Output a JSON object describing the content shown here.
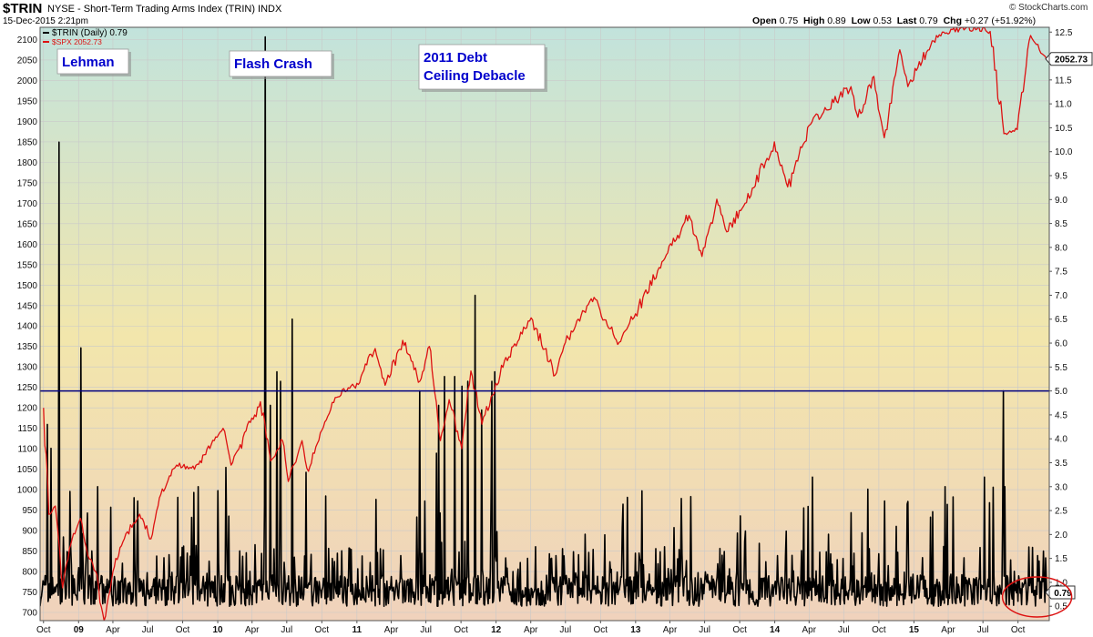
{
  "header": {
    "symbol": "$TRIN",
    "description": "NYSE - Short-Term Trading Arms Index (TRIN)  INDX",
    "date": "15-Dec-2015 2:21pm",
    "brand": "© StockCharts.com",
    "open_label": "Open",
    "open_value": "0.75",
    "high_label": "High",
    "high_value": "0.89",
    "low_label": "Low",
    "low_value": "0.53",
    "last_label": "Last",
    "last_value": "0.79",
    "chg_label": "Chg",
    "chg_value": "+0.27 (+51.92%)"
  },
  "colors": {
    "trin_line": "#000000",
    "spx_line": "#dd1111",
    "reference_line": "#000080",
    "annotation_text": "#0000cc",
    "highlight_circle": "#dd1111",
    "background_top": "#c2e3dc",
    "background_middle": "#f2e6ac",
    "background_bottom": "#f0d2bc"
  },
  "chart_data": {
    "type": "line",
    "legend": {
      "placement": "top-left",
      "entries": [
        "$TRIN (Daily) 0.79",
        "$SPX 2052.73"
      ]
    },
    "x_axis": {
      "range": [
        "2008-10",
        "2015-12"
      ],
      "tick_labels": [
        "Oct",
        "09",
        "Apr",
        "Jul",
        "Oct",
        "10",
        "Apr",
        "Jul",
        "Oct",
        "11",
        "Apr",
        "Jul",
        "Oct",
        "12",
        "Apr",
        "Jul",
        "Oct",
        "13",
        "Apr",
        "Jul",
        "Oct",
        "14",
        "Apr",
        "Jul",
        "Oct",
        "15",
        "Apr",
        "Jul",
        "Oct"
      ]
    },
    "left_axis": {
      "series": "$SPX",
      "range": [
        680,
        2130
      ],
      "tick_labels": [
        "700",
        "750",
        "800",
        "850",
        "900",
        "950",
        "1000",
        "1050",
        "1100",
        "1150",
        "1200",
        "1250",
        "1300",
        "1350",
        "1400",
        "1450",
        "1500",
        "1550",
        "1600",
        "1650",
        "1700",
        "1750",
        "1800",
        "1850",
        "1900",
        "1950",
        "2000",
        "2050",
        "2100"
      ]
    },
    "right_axis": {
      "series": "$TRIN",
      "range": [
        0.2,
        12.6
      ],
      "tick_labels": [
        "0.5",
        "1.0",
        "1.5",
        "2.0",
        "2.5",
        "3.0",
        "3.5",
        "4.0",
        "4.5",
        "5.0",
        "5.5",
        "6.0",
        "6.5",
        "7.0",
        "7.5",
        "8.0",
        "8.5",
        "9.0",
        "9.5",
        "10.0",
        "10.5",
        "11.0",
        "11.5",
        "12.0",
        "12.5"
      ]
    },
    "grid": true,
    "reference_line": {
      "axis": "right",
      "value": 5.0,
      "left_axis_equivalent": 1250
    },
    "series": [
      {
        "name": "$SPX",
        "axis": "left",
        "points": [
          [
            "2008-10-01",
            1200
          ],
          [
            "2008-10-15",
            940
          ],
          [
            "2008-11-01",
            960
          ],
          [
            "2008-11-20",
            760
          ],
          [
            "2008-12-15",
            880
          ],
          [
            "2009-01-06",
            930
          ],
          [
            "2009-01-25",
            840
          ],
          [
            "2009-02-15",
            800
          ],
          [
            "2009-03-09",
            680
          ],
          [
            "2009-04-01",
            800
          ],
          [
            "2009-05-01",
            880
          ],
          [
            "2009-06-10",
            940
          ],
          [
            "2009-07-10",
            880
          ],
          [
            "2009-08-01",
            980
          ],
          [
            "2009-09-15",
            1060
          ],
          [
            "2009-11-01",
            1050
          ],
          [
            "2009-12-15",
            1110
          ],
          [
            "2010-01-15",
            1150
          ],
          [
            "2010-02-05",
            1060
          ],
          [
            "2010-03-01",
            1110
          ],
          [
            "2010-04-23",
            1215
          ],
          [
            "2010-05-20",
            1070
          ],
          [
            "2010-06-20",
            1120
          ],
          [
            "2010-07-05",
            1020
          ],
          [
            "2010-08-10",
            1120
          ],
          [
            "2010-08-27",
            1045
          ],
          [
            "2010-10-01",
            1145
          ],
          [
            "2010-11-05",
            1225
          ],
          [
            "2011-01-01",
            1260
          ],
          [
            "2011-02-18",
            1345
          ],
          [
            "2011-03-16",
            1255
          ],
          [
            "2011-05-01",
            1365
          ],
          [
            "2011-06-15",
            1265
          ],
          [
            "2011-07-10",
            1350
          ],
          [
            "2011-08-08",
            1120
          ],
          [
            "2011-08-31",
            1220
          ],
          [
            "2011-10-03",
            1100
          ],
          [
            "2011-10-27",
            1290
          ],
          [
            "2011-11-25",
            1160
          ],
          [
            "2011-12-31",
            1260
          ],
          [
            "2012-02-15",
            1350
          ],
          [
            "2012-04-02",
            1420
          ],
          [
            "2012-06-04",
            1280
          ],
          [
            "2012-07-01",
            1360
          ],
          [
            "2012-09-14",
            1470
          ],
          [
            "2012-11-15",
            1355
          ],
          [
            "2013-01-01",
            1430
          ],
          [
            "2013-03-15",
            1560
          ],
          [
            "2013-05-21",
            1670
          ],
          [
            "2013-06-24",
            1570
          ],
          [
            "2013-08-02",
            1710
          ],
          [
            "2013-08-28",
            1630
          ],
          [
            "2013-10-15",
            1700
          ],
          [
            "2013-12-31",
            1850
          ],
          [
            "2014-02-04",
            1740
          ],
          [
            "2014-04-01",
            1890
          ],
          [
            "2014-07-20",
            1985
          ],
          [
            "2014-08-07",
            1910
          ],
          [
            "2014-09-18",
            2010
          ],
          [
            "2014-10-15",
            1860
          ],
          [
            "2014-11-25",
            2075
          ],
          [
            "2014-12-16",
            1985
          ],
          [
            "2015-03-01",
            2110
          ],
          [
            "2015-05-20",
            2130
          ],
          [
            "2015-07-20",
            2120
          ],
          [
            "2015-08-25",
            1870
          ],
          [
            "2015-09-29",
            1880
          ],
          [
            "2015-11-03",
            2110
          ],
          [
            "2015-12-15",
            2052
          ]
        ]
      },
      {
        "name": "$TRIN",
        "axis": "right",
        "daily_range_typical": [
          0.5,
          1.5
        ],
        "spikes": [
          [
            "2008-10-10",
            4.3
          ],
          [
            "2008-10-20",
            3.8
          ],
          [
            "2008-11-12",
            10.2
          ],
          [
            "2008-12-10",
            2.9
          ],
          [
            "2009-01-08",
            5.9
          ],
          [
            "2009-02-20",
            3.0
          ],
          [
            "2009-06-05",
            2.7
          ],
          [
            "2009-11-12",
            3.0
          ],
          [
            "2010-01-22",
            3.4
          ],
          [
            "2010-05-06",
            12.4
          ],
          [
            "2010-05-20",
            4.7
          ],
          [
            "2010-06-04",
            5.4
          ],
          [
            "2010-06-15",
            5.2
          ],
          [
            "2010-07-15",
            6.5
          ],
          [
            "2010-08-20",
            3.3
          ],
          [
            "2011-06-15",
            5.0
          ],
          [
            "2011-07-28",
            3.7
          ],
          [
            "2011-08-04",
            4.7
          ],
          [
            "2011-08-18",
            5.3
          ],
          [
            "2011-09-15",
            5.3
          ],
          [
            "2011-10-04",
            5.1
          ],
          [
            "2011-10-20",
            5.2
          ],
          [
            "2011-11-09",
            7.0
          ],
          [
            "2011-11-25",
            4.6
          ],
          [
            "2011-12-20",
            5.2
          ],
          [
            "2011-12-28",
            5.4
          ],
          [
            "2014-04-10",
            3.2
          ],
          [
            "2014-10-15",
            2.7
          ],
          [
            "2015-03-25",
            3.0
          ],
          [
            "2015-07-05",
            3.2
          ],
          [
            "2015-08-24",
            5.0
          ],
          [
            "2015-08-27",
            3.0
          ],
          [
            "2015-12-15",
            0.79
          ]
        ]
      }
    ],
    "last_value_flags": {
      "left": "2052.73",
      "right": "0.79"
    },
    "annotations": [
      {
        "text": "Lehman",
        "date": "2008-09-15"
      },
      {
        "text": "Flash Crash",
        "date": "2010-05-06"
      },
      {
        "text": "2011 Debt\nCeiling Debacle",
        "date": "2011-08-05"
      }
    ]
  }
}
